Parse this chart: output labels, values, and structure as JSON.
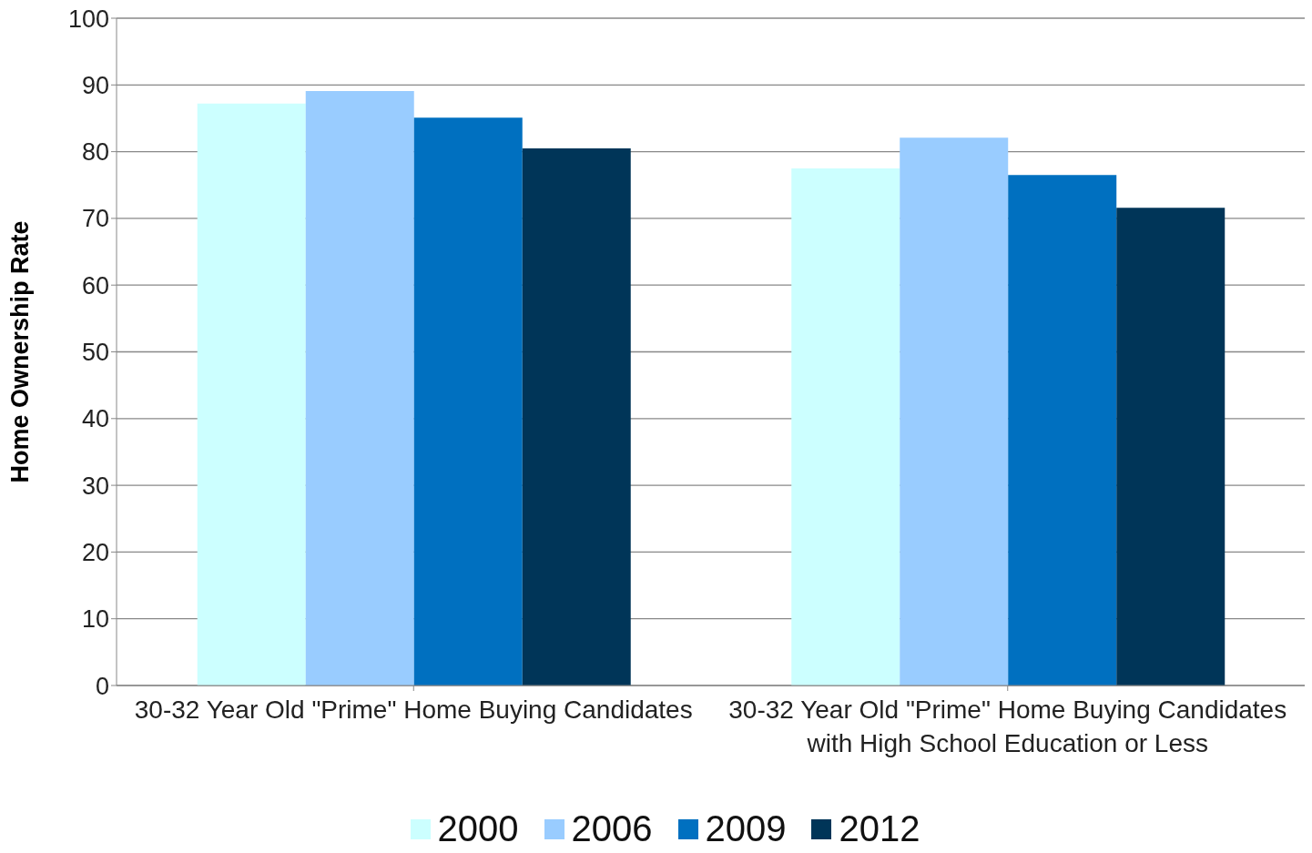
{
  "chart_data": {
    "type": "bar",
    "ylabel": "Home Ownership Rate",
    "categories": [
      "30-32 Year Old \"Prime\" Home Buying Candidates",
      "30-32 Year Old \"Prime\" Home Buying Candidates with High School Education or Less"
    ],
    "series": [
      {
        "name": "2000",
        "color": "#ccffff",
        "values": [
          87.2,
          77.5
        ]
      },
      {
        "name": "2006",
        "color": "#99ccff",
        "values": [
          89.1,
          82.1
        ]
      },
      {
        "name": "2009",
        "color": "#0070c0",
        "values": [
          85.1,
          76.5
        ]
      },
      {
        "name": "2012",
        "color": "#003558",
        "values": [
          80.5,
          71.6
        ]
      }
    ],
    "ylim": [
      0,
      100
    ],
    "yticks": [
      0,
      10,
      20,
      30,
      40,
      50,
      60,
      70,
      80,
      90,
      100
    ],
    "grid": "y",
    "legend": "bottom"
  }
}
